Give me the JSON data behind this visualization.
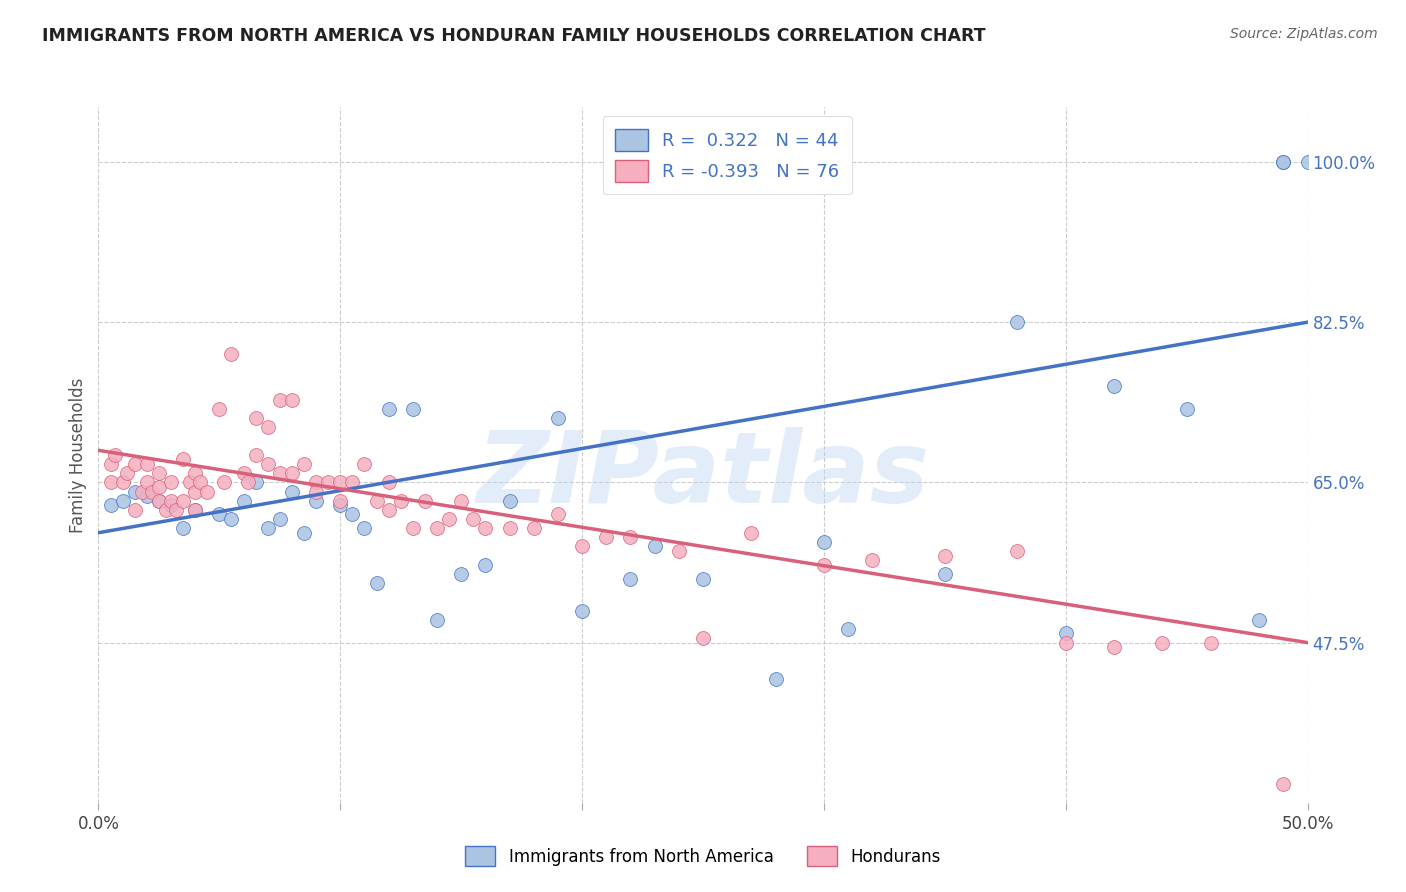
{
  "title": "IMMIGRANTS FROM NORTH AMERICA VS HONDURAN FAMILY HOUSEHOLDS CORRELATION CHART",
  "source": "Source: ZipAtlas.com",
  "ylabel": "Family Households",
  "xlim": [
    0.0,
    0.5
  ],
  "ylim": [
    0.3,
    1.06
  ],
  "yticks": [
    0.475,
    0.65,
    0.825,
    1.0
  ],
  "ytick_labels": [
    "47.5%",
    "65.0%",
    "82.5%",
    "100.0%"
  ],
  "xticks": [
    0.0,
    0.1,
    0.2,
    0.3,
    0.4,
    0.5
  ],
  "xtick_labels": [
    "0.0%",
    "",
    "",
    "",
    "",
    "50.0%"
  ],
  "legend_label1": "Immigrants from North America",
  "legend_label2": "Hondurans",
  "R1": 0.322,
  "N1": 44,
  "R2": -0.393,
  "N2": 76,
  "color1": "#aac4e2",
  "color2": "#f5afc0",
  "line_color1": "#4472c4",
  "line_color2": "#d9607a",
  "background_color": "#ffffff",
  "grid_color": "#cccccc",
  "watermark": "ZIPatlas",
  "blue_x": [
    0.005,
    0.01,
    0.015,
    0.02,
    0.025,
    0.03,
    0.035,
    0.04,
    0.05,
    0.055,
    0.06,
    0.065,
    0.07,
    0.075,
    0.08,
    0.085,
    0.09,
    0.1,
    0.105,
    0.11,
    0.115,
    0.12,
    0.13,
    0.14,
    0.15,
    0.16,
    0.17,
    0.19,
    0.2,
    0.22,
    0.23,
    0.25,
    0.28,
    0.3,
    0.31,
    0.35,
    0.38,
    0.4,
    0.42,
    0.45,
    0.48,
    0.49,
    0.49,
    0.5
  ],
  "blue_y": [
    0.625,
    0.63,
    0.64,
    0.635,
    0.63,
    0.625,
    0.6,
    0.62,
    0.615,
    0.61,
    0.63,
    0.65,
    0.6,
    0.61,
    0.64,
    0.595,
    0.63,
    0.625,
    0.615,
    0.6,
    0.54,
    0.73,
    0.73,
    0.5,
    0.55,
    0.56,
    0.63,
    0.72,
    0.51,
    0.545,
    0.58,
    0.545,
    0.435,
    0.585,
    0.49,
    0.55,
    0.825,
    0.485,
    0.755,
    0.73,
    0.5,
    1.0,
    1.0,
    1.0
  ],
  "pink_x": [
    0.005,
    0.005,
    0.007,
    0.01,
    0.012,
    0.015,
    0.015,
    0.018,
    0.02,
    0.02,
    0.022,
    0.025,
    0.025,
    0.025,
    0.028,
    0.03,
    0.03,
    0.032,
    0.035,
    0.035,
    0.038,
    0.04,
    0.04,
    0.04,
    0.042,
    0.045,
    0.05,
    0.052,
    0.055,
    0.06,
    0.062,
    0.065,
    0.065,
    0.07,
    0.07,
    0.075,
    0.075,
    0.08,
    0.08,
    0.085,
    0.09,
    0.09,
    0.095,
    0.1,
    0.1,
    0.105,
    0.11,
    0.115,
    0.12,
    0.12,
    0.125,
    0.13,
    0.135,
    0.14,
    0.145,
    0.15,
    0.155,
    0.16,
    0.17,
    0.18,
    0.19,
    0.2,
    0.21,
    0.22,
    0.24,
    0.25,
    0.27,
    0.3,
    0.32,
    0.35,
    0.38,
    0.4,
    0.42,
    0.44,
    0.46,
    0.49
  ],
  "pink_y": [
    0.65,
    0.67,
    0.68,
    0.65,
    0.66,
    0.62,
    0.67,
    0.64,
    0.65,
    0.67,
    0.64,
    0.63,
    0.645,
    0.66,
    0.62,
    0.63,
    0.65,
    0.62,
    0.63,
    0.675,
    0.65,
    0.62,
    0.64,
    0.66,
    0.65,
    0.64,
    0.73,
    0.65,
    0.79,
    0.66,
    0.65,
    0.68,
    0.72,
    0.67,
    0.71,
    0.66,
    0.74,
    0.66,
    0.74,
    0.67,
    0.65,
    0.64,
    0.65,
    0.63,
    0.65,
    0.65,
    0.67,
    0.63,
    0.62,
    0.65,
    0.63,
    0.6,
    0.63,
    0.6,
    0.61,
    0.63,
    0.61,
    0.6,
    0.6,
    0.6,
    0.615,
    0.58,
    0.59,
    0.59,
    0.575,
    0.48,
    0.595,
    0.56,
    0.565,
    0.57,
    0.575,
    0.475,
    0.47,
    0.475,
    0.475,
    0.32
  ]
}
